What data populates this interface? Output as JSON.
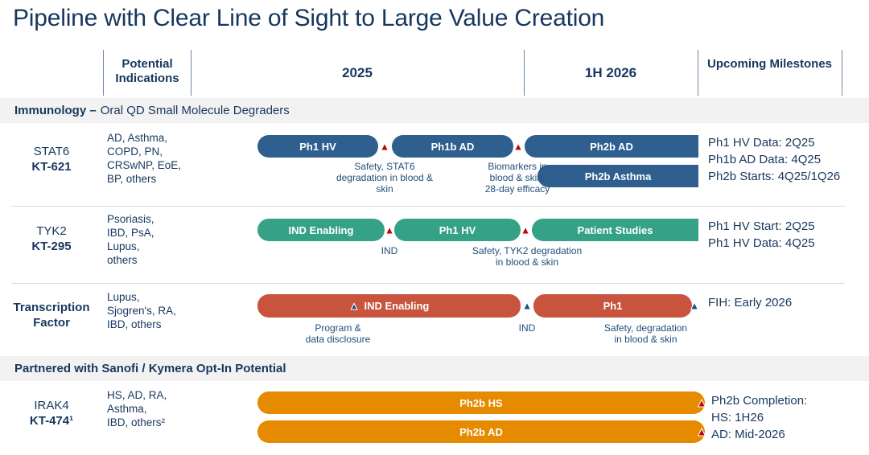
{
  "title": "Pipeline with Clear Line of Sight to Large Value Creation",
  "colors": {
    "navy_text": "#17375e",
    "annotation_navy": "#1f4e79",
    "bar_blue": "#2e5f8e",
    "bar_teal": "#35a287",
    "bar_red": "#c8543e",
    "bar_orange": "#e68a00",
    "marker_red": "#c00000",
    "marker_navy": "#1f4e79",
    "section_band_bg": "#f2f2f2",
    "divider": "#d9d9d9"
  },
  "icons": {
    "milestone_marker": "▲"
  },
  "header": {
    "columns": [
      "Potential Indications",
      "2025",
      "1H 2026",
      "Upcoming Milestones"
    ]
  },
  "sections": {
    "immunology": {
      "bold": "Immunology –",
      "rest": "Oral QD Small Molecule Degraders"
    },
    "partnered": {
      "bold": "Partnered with Sanofi / Kymera Opt-In Potential",
      "rest": ""
    }
  },
  "rows": {
    "stat6": {
      "target": "STAT6",
      "program": "KT-621",
      "indications": [
        "AD, Asthma,",
        "COPD, PN,",
        "CRSwNP, EoE,",
        "BP, others"
      ],
      "bars": {
        "b1": "Ph1 HV",
        "b2": "Ph1b AD",
        "b3": "Ph2b AD",
        "b4": "Ph2b Asthma"
      },
      "annotations": {
        "a1": [
          "Safety, STAT6",
          "degradation in blood &",
          "skin"
        ],
        "a2": [
          "Biomarkers in",
          "blood & skin,",
          "28-day efficacy"
        ]
      },
      "milestones": [
        "Ph1 HV Data: 2Q25",
        "Ph1b AD Data: 4Q25",
        "Ph2b Starts: 4Q25/1Q26"
      ]
    },
    "tyk2": {
      "target": "TYK2",
      "program": "KT-295",
      "indications": [
        "Psoriasis,",
        "IBD, PsA,",
        "Lupus,",
        "others"
      ],
      "bars": {
        "b1": "IND Enabling",
        "b2": "Ph1 HV",
        "b3": "Patient Studies"
      },
      "annotations": {
        "a1": [
          "IND"
        ],
        "a2": [
          "Safety, TYK2 degradation",
          "in blood & skin"
        ]
      },
      "milestones": [
        "Ph1 HV Start: 2Q25",
        "Ph1 HV Data: 4Q25"
      ]
    },
    "tf": {
      "target": "Transcription",
      "program": "Factor",
      "indications": [
        "Lupus,",
        "Sjogren's, RA,",
        "IBD, others"
      ],
      "bars": {
        "b1": "IND Enabling",
        "b2": "Ph1"
      },
      "annotations": {
        "a1": [
          "Program &",
          "data disclosure"
        ],
        "a2": [
          "IND"
        ],
        "a3": [
          "Safety, degradation",
          "in blood & skin"
        ]
      },
      "milestones": [
        "FIH: Early 2026"
      ]
    },
    "irak4": {
      "target": "IRAK4",
      "program": "KT-474¹",
      "indications": [
        "HS, AD, RA,",
        "Asthma,",
        "IBD, others²"
      ],
      "bars": {
        "b1": "Ph2b HS",
        "b2": "Ph2b AD"
      },
      "milestones": [
        "Ph2b Completion:",
        "HS: 1H26",
        "AD: Mid-2026"
      ]
    }
  }
}
